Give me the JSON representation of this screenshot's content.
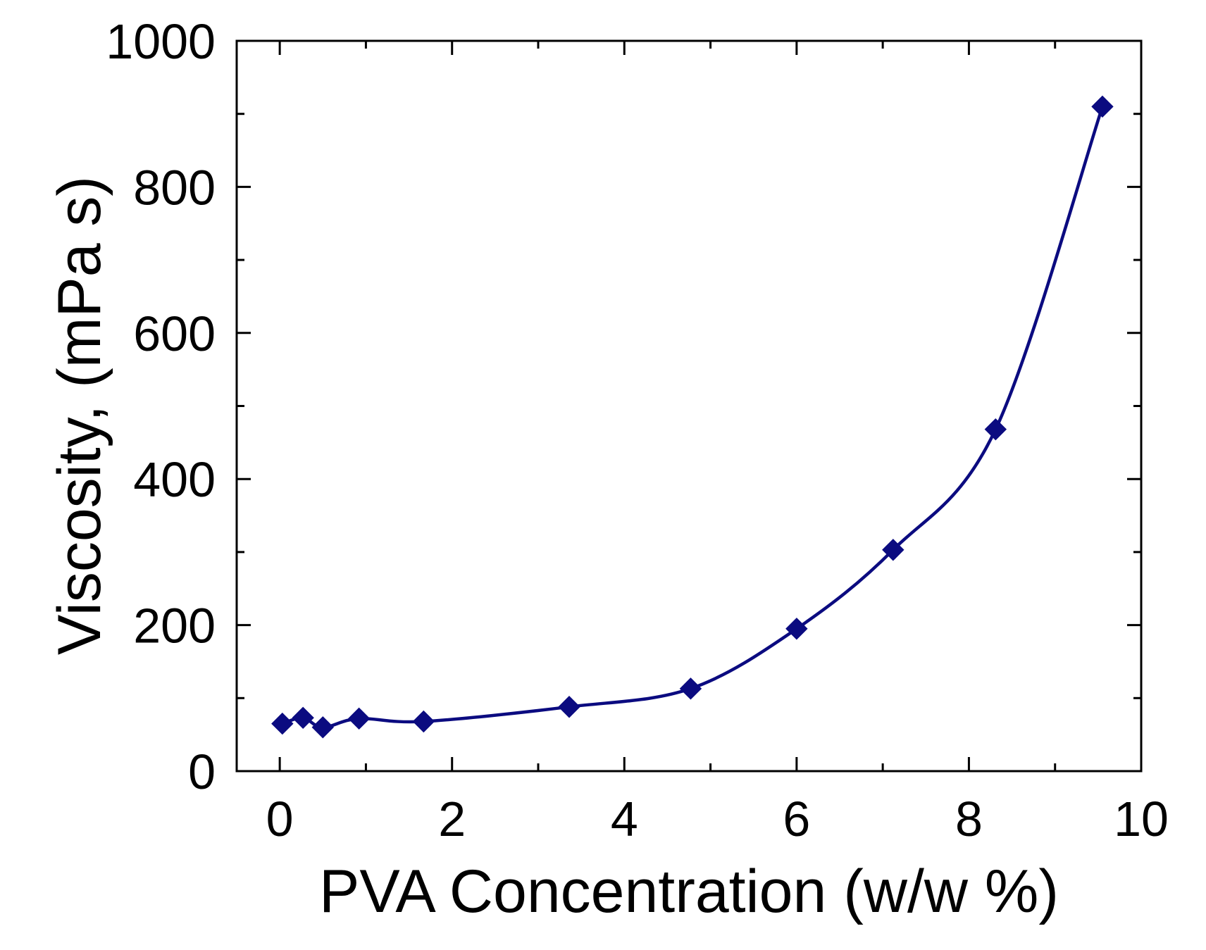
{
  "chart_data": {
    "type": "line",
    "title": "",
    "xlabel": "PVA Concentration (w/w %)",
    "ylabel": "Viscosity, (mPa s)",
    "xlim": [
      -0.5,
      10
    ],
    "ylim": [
      0,
      1000
    ],
    "x_ticks": [
      0,
      2,
      4,
      6,
      8,
      10
    ],
    "x_tick_labels": [
      "0",
      "2",
      "4",
      "6",
      "8",
      "10"
    ],
    "y_ticks": [
      0,
      200,
      400,
      600,
      800,
      1000
    ],
    "y_tick_labels": [
      "0",
      "200",
      "400",
      "600",
      "800",
      "1000"
    ],
    "grid": false,
    "legend": "none",
    "marker": "diamond",
    "series": [
      {
        "name": "Viscosity",
        "color": "#0b0b80",
        "x": [
          0.03,
          0.27,
          0.5,
          0.92,
          1.67,
          3.36,
          4.77,
          6.0,
          7.12,
          8.31,
          9.55
        ],
        "y": [
          65,
          73,
          60,
          72,
          68,
          88,
          113,
          195,
          303,
          468,
          910
        ]
      }
    ]
  }
}
